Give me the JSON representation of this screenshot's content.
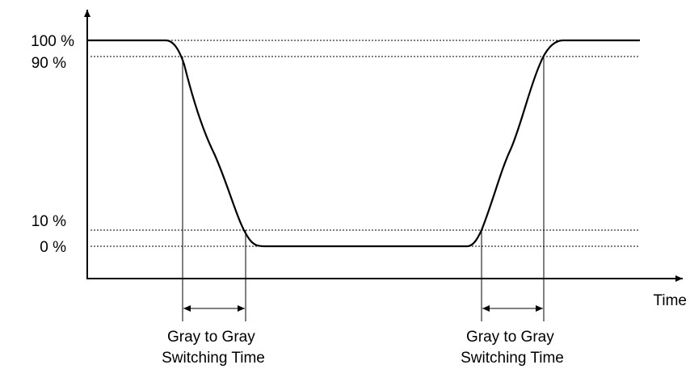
{
  "levels": [
    "100 %",
    "90 %",
    "10 %",
    "0 %"
  ],
  "x_axis_label": "Time",
  "annotations": [
    [
      "Gray to Gray",
      "Switching Time"
    ],
    [
      "Gray to Gray",
      "Switching Time"
    ]
  ]
}
